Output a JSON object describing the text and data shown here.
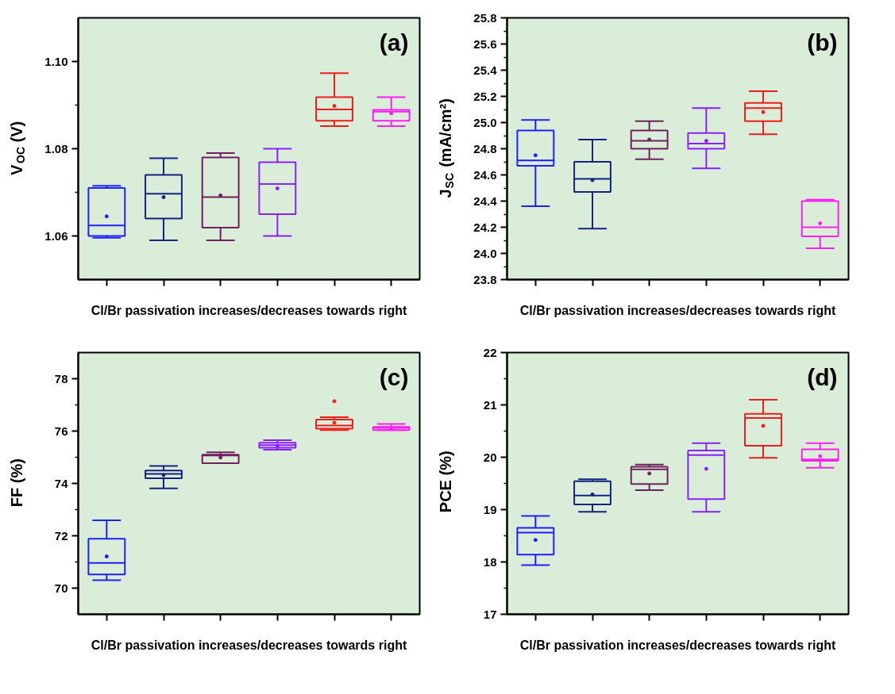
{
  "chart_data": [
    {
      "type": "box",
      "ylabel": "V$_{OC}$ (V)",
      "xlabel": "Cl/Br passivation increases/decreases towards right",
      "annotations": [
        "(a)"
      ],
      "categories": [
        null,
        null,
        null,
        null,
        null,
        null
      ],
      "colors": [
        "#1f1fff",
        "#16237e",
        "#70205f",
        "#8a1fff",
        "#ee1c1c",
        "#ff1fef"
      ],
      "boxes": [
        {
          "low": 1.0596,
          "q1": 1.06,
          "median": 1.0624,
          "q3": 1.071,
          "high": 1.0715,
          "mean": 1.0645
        },
        {
          "low": 1.059,
          "q1": 1.064,
          "median": 1.0697,
          "q3": 1.074,
          "high": 1.0778,
          "mean": 1.0689
        },
        {
          "low": 1.059,
          "q1": 1.0619,
          "median": 1.0689,
          "q3": 1.078,
          "high": 1.079,
          "mean": 1.0693
        },
        {
          "low": 1.06,
          "q1": 1.065,
          "median": 1.0719,
          "q3": 1.0769,
          "high": 1.08,
          "mean": 1.0709
        },
        {
          "low": 1.0852,
          "q1": 1.0864,
          "median": 1.089,
          "q3": 1.0918,
          "high": 1.0973,
          "mean": 1.0898
        },
        {
          "low": 1.0852,
          "q1": 1.0864,
          "median": 1.0885,
          "q3": 1.0889,
          "high": 1.0918,
          "mean": 1.0881
        }
      ],
      "ylim": [
        1.05,
        1.11
      ],
      "yticks": [
        1.06,
        {
          "value": 1.07,
          "label": null
        },
        1.08,
        {
          "value": 1.09,
          "label": null
        },
        {
          "value": 1.1,
          "label": "1.10"
        }
      ],
      "tick_labels": "y",
      "grid": false
    },
    {
      "type": "box",
      "ylabel": "J$_{SC}$ (mA/cm²)",
      "xlabel": "Cl/Br passivation increases/decreases towards right",
      "annotations": [
        "(b)"
      ],
      "categories": [
        null,
        null,
        null,
        null,
        null,
        null
      ],
      "colors": [
        "#1f1fff",
        "#16237e",
        "#70205f",
        "#8a1fff",
        "#ee1c1c",
        "#ff1fef"
      ],
      "boxes": [
        {
          "low": 24.36,
          "q1": 24.67,
          "median": 24.71,
          "q3": 24.94,
          "high": 25.02,
          "mean": 24.75
        },
        {
          "low": 24.19,
          "q1": 24.47,
          "median": 24.57,
          "q3": 24.7,
          "high": 24.87,
          "mean": 24.56
        },
        {
          "low": 24.72,
          "q1": 24.8,
          "median": 24.86,
          "q3": 24.94,
          "high": 25.01,
          "mean": 24.87
        },
        {
          "low": 24.65,
          "q1": 24.8,
          "median": 24.84,
          "q3": 24.92,
          "high": 25.11,
          "mean": 24.86
        },
        {
          "low": 24.91,
          "q1": 25.01,
          "median": 25.11,
          "q3": 25.15,
          "high": 25.24,
          "mean": 25.08
        },
        {
          "low": 24.04,
          "q1": 24.13,
          "median": 24.2,
          "q3": 24.4,
          "high": 24.41,
          "mean": 24.23
        }
      ],
      "ylim": [
        23.8,
        25.8
      ],
      "yticks": [
        23.8,
        {
          "value": 23.9,
          "label": null
        },
        {
          "value": 24.0,
          "label": "24.0"
        },
        {
          "value": 24.1,
          "label": null
        },
        24.2,
        {
          "value": 24.3,
          "label": null
        },
        24.4,
        {
          "value": 24.5,
          "label": null
        },
        24.6,
        {
          "value": 24.7,
          "label": null
        },
        24.8,
        {
          "value": 24.9,
          "label": null
        },
        {
          "value": 25.0,
          "label": "25.0"
        },
        {
          "value": 25.1,
          "label": null
        },
        25.2,
        {
          "value": 25.3,
          "label": null
        },
        25.4,
        {
          "value": 25.5,
          "label": null
        },
        25.6,
        {
          "value": 25.7,
          "label": null
        },
        25.8
      ],
      "tick_labels": "y",
      "grid": false
    },
    {
      "type": "box",
      "ylabel": "FF (%)",
      "xlabel": "Cl/Br passivation increases/decreases towards right",
      "annotations": [
        "(c)"
      ],
      "categories": [
        null,
        null,
        null,
        null,
        null,
        null
      ],
      "colors": [
        "#1f1fff",
        "#16237e",
        "#70205f",
        "#8a1fff",
        "#ee1c1c",
        "#ff1fef"
      ],
      "boxes": [
        {
          "low": 70.3,
          "q1": 70.52,
          "median": 70.96,
          "q3": 71.89,
          "high": 72.59,
          "mean": 71.21
        },
        {
          "low": 73.81,
          "q1": 74.2,
          "median": 74.36,
          "q3": 74.49,
          "high": 74.67,
          "mean": 74.32
        },
        {
          "low": 74.77,
          "q1": 74.77,
          "median": 75.07,
          "q3": 75.1,
          "high": 75.19,
          "mean": 74.99
        },
        {
          "low": 75.29,
          "q1": 75.36,
          "median": 75.46,
          "q3": 75.55,
          "high": 75.65,
          "mean": 75.44
        },
        {
          "low": 76.04,
          "q1": 76.09,
          "median": 76.21,
          "q3": 76.44,
          "high": 76.53,
          "mean": 76.32,
          "outliers": [
            77.14
          ]
        },
        {
          "low": 76.04,
          "q1": 76.04,
          "median": 76.12,
          "q3": 76.16,
          "high": 76.27,
          "mean": 76.11
        }
      ],
      "ylim": [
        69,
        79
      ],
      "yticks": [
        70,
        {
          "value": 71,
          "label": null
        },
        72,
        {
          "value": 73,
          "label": null
        },
        74,
        {
          "value": 75,
          "label": null
        },
        76,
        {
          "value": 77,
          "label": null
        },
        78
      ],
      "tick_labels": "y",
      "grid": false
    },
    {
      "type": "box",
      "ylabel": "PCE (%)",
      "xlabel": "Cl/Br passivation increases/decreases towards right",
      "annotations": [
        "(d)"
      ],
      "categories": [
        null,
        null,
        null,
        null,
        null,
        null
      ],
      "colors": [
        "#1f1fff",
        "#16237e",
        "#70205f",
        "#8a1fff",
        "#ee1c1c",
        "#ff1fef"
      ],
      "boxes": [
        {
          "low": 17.94,
          "q1": 18.14,
          "median": 18.56,
          "q3": 18.65,
          "high": 18.88,
          "mean": 18.42
        },
        {
          "low": 18.96,
          "q1": 19.1,
          "median": 19.27,
          "q3": 19.54,
          "high": 19.58,
          "mean": 19.29
        },
        {
          "low": 19.37,
          "q1": 19.49,
          "median": 19.77,
          "q3": 19.82,
          "high": 19.86,
          "mean": 19.69
        },
        {
          "low": 18.96,
          "q1": 19.2,
          "median": 20.04,
          "q3": 20.13,
          "high": 20.27,
          "mean": 19.78
        },
        {
          "low": 19.99,
          "q1": 20.22,
          "median": 20.75,
          "q3": 20.83,
          "high": 21.1,
          "mean": 20.6
        },
        {
          "low": 19.8,
          "q1": 19.93,
          "median": 19.96,
          "q3": 20.15,
          "high": 20.27,
          "mean": 20.02
        }
      ],
      "ylim": [
        17,
        22
      ],
      "yticks": [
        17,
        {
          "value": 17.5,
          "label": null
        },
        18,
        {
          "value": 18.5,
          "label": null
        },
        19,
        {
          "value": 19.5,
          "label": null
        },
        20,
        {
          "value": 20.5,
          "label": null
        },
        21,
        {
          "value": 21.5,
          "label": null
        },
        22
      ],
      "tick_labels": "y",
      "grid": false
    }
  ]
}
